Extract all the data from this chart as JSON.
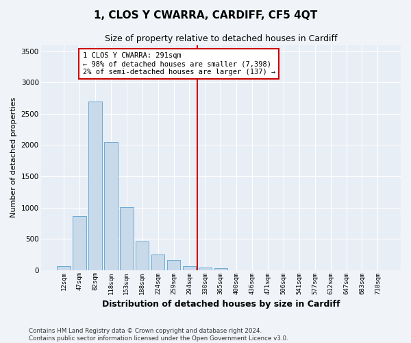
{
  "title": "1, CLOS Y CWARRA, CARDIFF, CF5 4QT",
  "subtitle": "Size of property relative to detached houses in Cardiff",
  "xlabel": "Distribution of detached houses by size in Cardiff",
  "ylabel": "Number of detached properties",
  "bar_color": "#c8d9ea",
  "bar_edge_color": "#6aaad4",
  "background_color": "#e8eef5",
  "grid_color": "#ffffff",
  "bin_labels": [
    "12sqm",
    "47sqm",
    "82sqm",
    "118sqm",
    "153sqm",
    "188sqm",
    "224sqm",
    "259sqm",
    "294sqm",
    "330sqm",
    "365sqm",
    "400sqm",
    "436sqm",
    "471sqm",
    "506sqm",
    "541sqm",
    "577sqm",
    "612sqm",
    "647sqm",
    "683sqm",
    "718sqm"
  ],
  "bar_values": [
    60,
    860,
    2700,
    2050,
    1010,
    455,
    250,
    160,
    60,
    40,
    30,
    0,
    0,
    0,
    0,
    0,
    0,
    0,
    0,
    0,
    0
  ],
  "vline_x": 8.5,
  "vline_color": "#cc0000",
  "annotation_text": "1 CLOS Y CWARRA: 291sqm\n← 98% of detached houses are smaller (7,398)\n2% of semi-detached houses are larger (137) →",
  "annotation_box_color": "#cc0000",
  "ylim": [
    0,
    3600
  ],
  "yticks": [
    0,
    500,
    1000,
    1500,
    2000,
    2500,
    3000,
    3500
  ],
  "footer_line1": "Contains HM Land Registry data © Crown copyright and database right 2024.",
  "footer_line2": "Contains public sector information licensed under the Open Government Licence v3.0."
}
